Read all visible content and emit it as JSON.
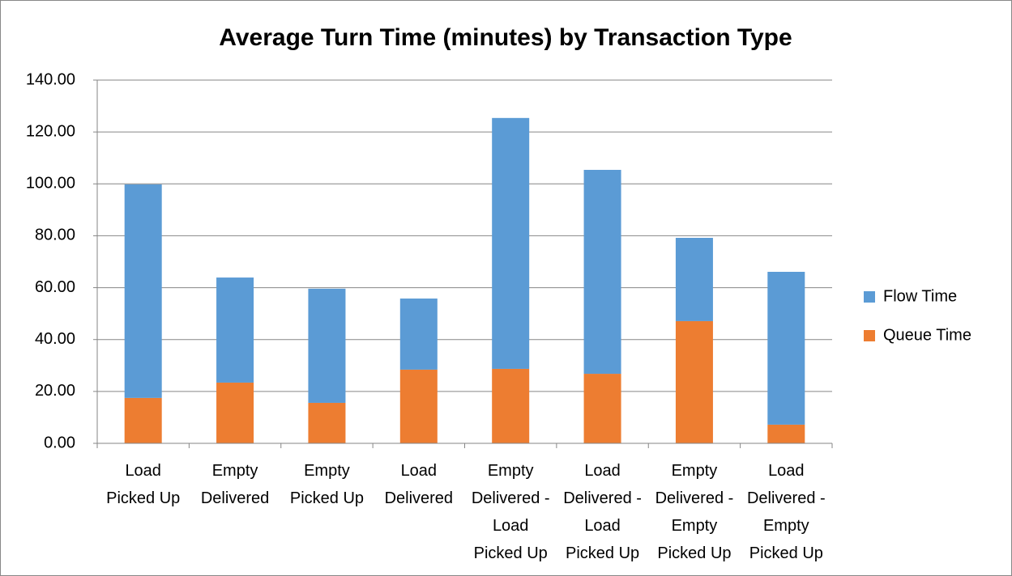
{
  "chart_data": {
    "type": "stacked_bar",
    "title": "Average Turn Time (minutes) by Transaction Type",
    "categories": [
      "Load Picked Up",
      "Empty Delivered",
      "Empty Picked Up",
      "Load Delivered",
      "Empty Delivered - Load Picked Up",
      "Load Delivered - Load Picked Up",
      "Empty Delivered - Empty Picked Up",
      "Load Delivered - Empty Picked Up"
    ],
    "series": [
      {
        "name": "Queue Time",
        "color": "#ed7d31",
        "values": [
          17.5,
          23.4,
          15.6,
          28.4,
          28.7,
          26.8,
          47.1,
          7.2
        ]
      },
      {
        "name": "Flow Time",
        "color": "#5b9bd5",
        "values": [
          82.3,
          40.5,
          44.0,
          27.4,
          96.7,
          78.6,
          32.1,
          58.9
        ]
      }
    ],
    "ylim": [
      0,
      140
    ],
    "yticks": [
      {
        "value": 0,
        "label": "0.00"
      },
      {
        "value": 20,
        "label": "20.00"
      },
      {
        "value": 40,
        "label": "40.00"
      },
      {
        "value": 60,
        "label": "60.00"
      },
      {
        "value": 80,
        "label": "80.00"
      },
      {
        "value": 100,
        "label": "100.00"
      },
      {
        "value": 120,
        "label": "120.00"
      },
      {
        "value": 140,
        "label": "140.00"
      }
    ],
    "grid": true,
    "legend": "right"
  }
}
